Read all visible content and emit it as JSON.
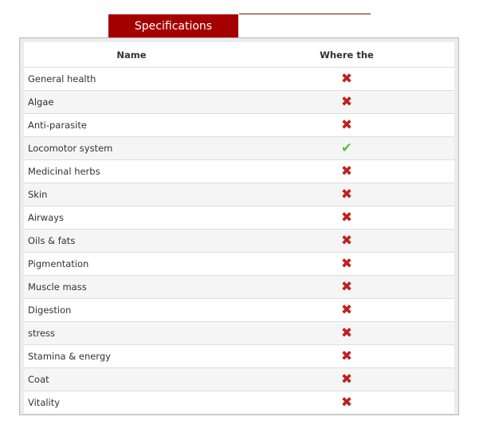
{
  "tab": {
    "label": "Specifications"
  },
  "table": {
    "headers": [
      "Name",
      "Where the"
    ],
    "rows": [
      {
        "name": "General health",
        "value": false
      },
      {
        "name": "Algae",
        "value": false
      },
      {
        "name": "Anti-parasite",
        "value": false
      },
      {
        "name": "Locomotor system",
        "value": true
      },
      {
        "name": "Medicinal herbs",
        "value": false
      },
      {
        "name": "Skin",
        "value": false
      },
      {
        "name": "Airways",
        "value": false
      },
      {
        "name": "Oils & fats",
        "value": false
      },
      {
        "name": "Pigmentation",
        "value": false
      },
      {
        "name": "Muscle mass",
        "value": false
      },
      {
        "name": "Digestion",
        "value": false
      },
      {
        "name": "stress",
        "value": false
      },
      {
        "name": "Stamina & energy",
        "value": false
      },
      {
        "name": "Coat",
        "value": false
      },
      {
        "name": "Vitality",
        "value": false
      }
    ]
  },
  "colors": {
    "accent": "#a50000",
    "cross": "#c0201e",
    "check": "#5bbf4a"
  }
}
